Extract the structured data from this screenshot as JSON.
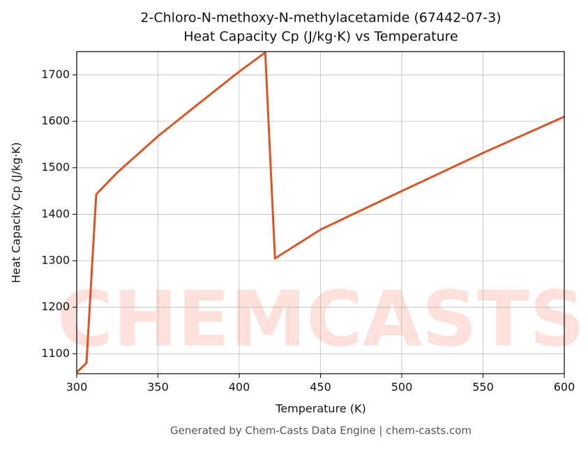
{
  "chart_data": {
    "type": "line",
    "title": "2-Chloro-N-methoxy-N-methylacetamide (67442-07-3)",
    "subtitle": "Heat Capacity Cp (J/kg·K) vs Temperature",
    "x_label": "Temperature (K)",
    "y_label": "Heat Capacity Cp (J/kg·K)",
    "watermark": "CHEMCASTS",
    "footer": "Generated by Chem-Casts Data Engine | chem-casts.com",
    "x": [
      300,
      306,
      312,
      325,
      350,
      375,
      400,
      416,
      422,
      450,
      500,
      550,
      600
    ],
    "series": [
      {
        "name": "Cp",
        "color": "#d95525",
        "values": [
          1060,
          1080,
          1443,
          1490,
          1568,
          1638,
          1707,
          1748,
          1305,
          1367,
          1450,
          1532,
          1610
        ]
      }
    ],
    "xlim": [
      300,
      600
    ],
    "xticks": [
      300,
      350,
      400,
      450,
      500,
      550,
      600
    ],
    "ylim": [
      1057,
      1750
    ],
    "yticks": [
      1100,
      1200,
      1300,
      1400,
      1500,
      1600,
      1700
    ],
    "grid": true
  }
}
